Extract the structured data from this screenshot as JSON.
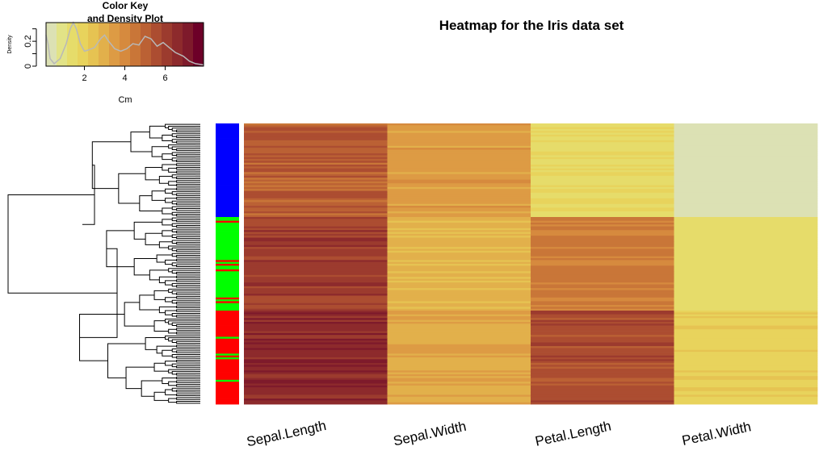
{
  "chart_data": {
    "type": "heatmap",
    "title": "Heatmap for the Iris data set",
    "columns": [
      "Sepal.Length",
      "Sepal.Width",
      "Petal.Length",
      "Petal.Width"
    ],
    "row_groups": [
      {
        "rows": 50,
        "side_color": "#0000ff"
      },
      {
        "rows": 50,
        "side_color": "#00ff00"
      },
      {
        "rows": 50,
        "side_color": "#ff0000"
      }
    ],
    "group_means": [
      {
        "Sepal.Length": 5.0,
        "Sepal.Width": 3.4,
        "Petal.Length": 1.5,
        "Petal.Width": 0.2
      },
      {
        "Sepal.Length": 5.9,
        "Sepal.Width": 2.8,
        "Petal.Length": 4.3,
        "Petal.Width": 1.3
      },
      {
        "Sepal.Length": 6.6,
        "Sepal.Width": 3.0,
        "Petal.Length": 5.6,
        "Petal.Width": 2.0
      }
    ],
    "color_scale": [
      "#dce1b4",
      "#e2e387",
      "#e6dc6a",
      "#e8d35c",
      "#e6c352",
      "#e2b04b",
      "#dd9b44",
      "#d68a3e",
      "#c97638",
      "#bb6134",
      "#ac4d31",
      "#9c3b2e",
      "#8d2a2c",
      "#7e1a2b",
      "#6d0028"
    ],
    "color_range": [
      0,
      7.9
    ],
    "color_key": {
      "title_line1": "Color Key",
      "title_line2": "and Density Plot",
      "xlabel": "Cm",
      "ylabel": "Density",
      "x_ticks": [
        "2",
        "4",
        "6"
      ],
      "y_ticks": [
        "0",
        "0.2"
      ],
      "xlim": [
        0.1,
        7.9
      ],
      "density_ylim": [
        0,
        0.35
      ],
      "density_curve": [
        [
          0.1,
          0.25
        ],
        [
          0.2,
          0.18
        ],
        [
          0.3,
          0.06
        ],
        [
          0.5,
          0.02
        ],
        [
          0.8,
          0.06
        ],
        [
          1.1,
          0.18
        ],
        [
          1.3,
          0.3
        ],
        [
          1.45,
          0.35
        ],
        [
          1.6,
          0.3
        ],
        [
          1.8,
          0.18
        ],
        [
          2.0,
          0.12
        ],
        [
          2.2,
          0.13
        ],
        [
          2.5,
          0.15
        ],
        [
          2.8,
          0.22
        ],
        [
          3.0,
          0.25
        ],
        [
          3.2,
          0.2
        ],
        [
          3.5,
          0.14
        ],
        [
          3.8,
          0.12
        ],
        [
          4.1,
          0.14
        ],
        [
          4.4,
          0.18
        ],
        [
          4.7,
          0.17
        ],
        [
          5.0,
          0.24
        ],
        [
          5.3,
          0.22
        ],
        [
          5.6,
          0.16
        ],
        [
          5.9,
          0.19
        ],
        [
          6.2,
          0.15
        ],
        [
          6.5,
          0.11
        ],
        [
          6.9,
          0.08
        ],
        [
          7.2,
          0.04
        ],
        [
          7.5,
          0.02
        ],
        [
          7.9,
          0.01
        ]
      ]
    }
  }
}
